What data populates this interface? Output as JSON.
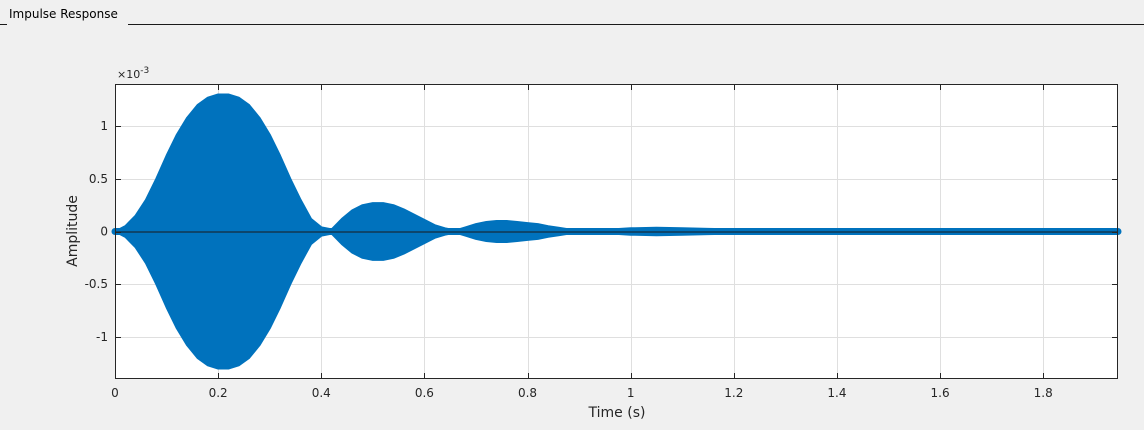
{
  "panel": {
    "title": "Impulse Response"
  },
  "chart_data": {
    "type": "line",
    "title": "",
    "xlabel": "Time (s)",
    "ylabel": "Amplitude",
    "y_exponent_label": "×10",
    "y_exponent_power": "-3",
    "xlim": [
      0,
      1.945
    ],
    "ylim": [
      -1.4,
      1.4
    ],
    "x_ticks": [
      0,
      0.2,
      0.4,
      0.6,
      0.8,
      1,
      1.2,
      1.4,
      1.6,
      1.8
    ],
    "x_tick_labels": [
      "0",
      "0.2",
      "0.4",
      "0.6",
      "0.8",
      "1",
      "1.2",
      "1.4",
      "1.6",
      "1.8"
    ],
    "y_ticks": [
      -1,
      -0.5,
      0,
      0.5,
      1
    ],
    "y_tick_labels": [
      "-1",
      "-0.5",
      "0",
      "0.5",
      "1"
    ],
    "grid": true,
    "series_color": "#0072bd",
    "envelope": {
      "x": [
        0,
        0.02,
        0.04,
        0.06,
        0.08,
        0.1,
        0.12,
        0.14,
        0.16,
        0.18,
        0.2,
        0.22,
        0.24,
        0.26,
        0.28,
        0.3,
        0.32,
        0.34,
        0.36,
        0.38,
        0.4,
        0.42,
        0.44,
        0.46,
        0.48,
        0.5,
        0.52,
        0.54,
        0.56,
        0.58,
        0.6,
        0.62,
        0.64,
        0.66,
        0.68,
        0.7,
        0.72,
        0.74,
        0.76,
        0.78,
        0.8,
        0.82,
        0.84,
        0.86,
        0.88,
        0.9,
        0.92,
        0.95,
        1.0,
        1.05,
        1.1,
        1.15,
        1.2,
        1.25,
        1.3,
        1.35,
        1.4,
        1.5,
        1.6,
        1.7,
        1.8,
        1.9,
        1.945
      ],
      "values": [
        0.0,
        0.05,
        0.15,
        0.3,
        0.5,
        0.72,
        0.92,
        1.08,
        1.2,
        1.27,
        1.3,
        1.3,
        1.27,
        1.2,
        1.08,
        0.92,
        0.72,
        0.5,
        0.3,
        0.12,
        0.04,
        0.02,
        0.12,
        0.2,
        0.25,
        0.27,
        0.27,
        0.25,
        0.21,
        0.16,
        0.11,
        0.06,
        0.03,
        0.01,
        0.04,
        0.07,
        0.09,
        0.1,
        0.1,
        0.09,
        0.08,
        0.07,
        0.05,
        0.035,
        0.02,
        0.01,
        0.005,
        0.015,
        0.03,
        0.035,
        0.03,
        0.025,
        0.02,
        0.02,
        0.018,
        0.017,
        0.016,
        0.015,
        0.014,
        0.013,
        0.012,
        0.011,
        0.01
      ]
    }
  }
}
